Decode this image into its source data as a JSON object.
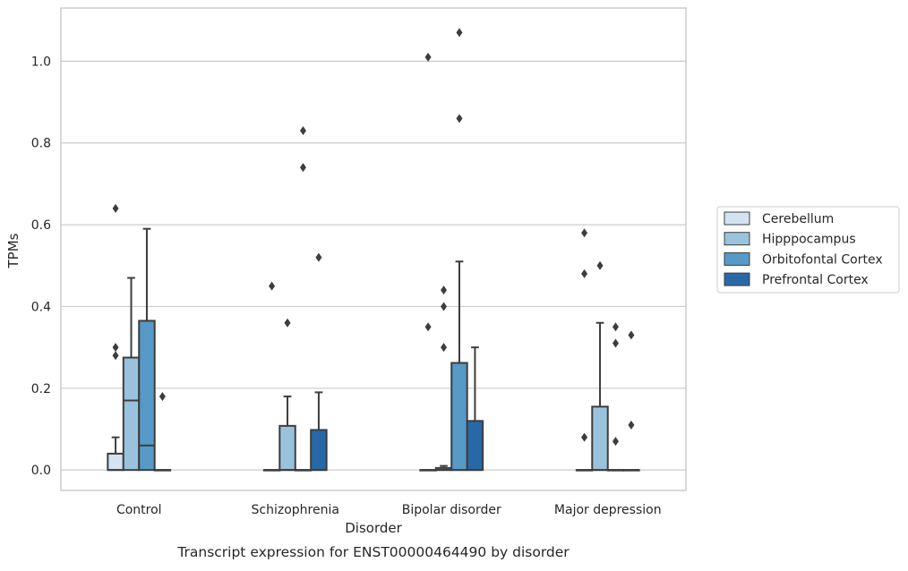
{
  "chart_data": {
    "type": "boxplot",
    "title": "Transcript expression for ENST00000464490 by disorder",
    "xlabel": "Disorder",
    "ylabel": "TPMs",
    "ylim": [
      -0.05,
      1.13
    ],
    "yticks": [
      0.0,
      0.2,
      0.4,
      0.6,
      0.8,
      1.0
    ],
    "ytick_labels": [
      "0.0",
      "0.2",
      "0.4",
      "0.6",
      "0.8",
      "1.0"
    ],
    "grid": "horizontal",
    "legend_position": "right",
    "categories": [
      "Control",
      "Schizophrenia",
      "Bipolar disorder",
      "Major depression"
    ],
    "series": [
      {
        "name": "Cerebellum",
        "color": "#d4e3f1",
        "boxes": [
          {
            "min": 0.0,
            "q1": 0.0,
            "median": 0.0,
            "q3": 0.04,
            "max": 0.08,
            "outliers": [
              0.64,
              0.3,
              0.28
            ]
          },
          {
            "min": 0.0,
            "q1": 0.0,
            "median": 0.0,
            "q3": 0.0,
            "max": 0.0,
            "outliers": [
              0.45
            ]
          },
          {
            "min": 0.0,
            "q1": 0.0,
            "median": 0.0,
            "q3": 0.0,
            "max": 0.0,
            "outliers": [
              1.01,
              0.35
            ]
          },
          {
            "min": 0.0,
            "q1": 0.0,
            "median": 0.0,
            "q3": 0.0,
            "max": 0.0,
            "outliers": [
              0.58,
              0.48,
              0.08
            ]
          }
        ]
      },
      {
        "name": "Hipppocampus",
        "color": "#9ac2dc",
        "boxes": [
          {
            "min": 0.0,
            "q1": 0.0,
            "median": 0.17,
            "q3": 0.275,
            "max": 0.47,
            "outliers": []
          },
          {
            "min": 0.0,
            "q1": 0.0,
            "median": 0.0,
            "q3": 0.108,
            "max": 0.18,
            "outliers": [
              0.36
            ]
          },
          {
            "min": 0.0,
            "q1": 0.0,
            "median": 0.0,
            "q3": 0.005,
            "max": 0.01,
            "outliers": [
              0.44,
              0.4,
              0.3
            ]
          },
          {
            "min": 0.0,
            "q1": 0.0,
            "median": 0.0,
            "q3": 0.155,
            "max": 0.36,
            "outliers": [
              0.5
            ]
          }
        ]
      },
      {
        "name": "Orbitofontal Cortex",
        "color": "#5799c7",
        "boxes": [
          {
            "min": 0.0,
            "q1": 0.0,
            "median": 0.06,
            "q3": 0.365,
            "max": 0.59,
            "outliers": []
          },
          {
            "min": 0.0,
            "q1": 0.0,
            "median": 0.0,
            "q3": 0.0,
            "max": 0.0,
            "outliers": [
              0.83,
              0.74
            ]
          },
          {
            "min": 0.0,
            "q1": 0.0,
            "median": 0.0,
            "q3": 0.262,
            "max": 0.51,
            "outliers": [
              1.07,
              0.86
            ]
          },
          {
            "min": 0.0,
            "q1": 0.0,
            "median": 0.0,
            "q3": 0.0,
            "max": 0.0,
            "outliers": [
              0.35,
              0.31,
              0.07
            ]
          }
        ]
      },
      {
        "name": "Prefrontal Cortex",
        "color": "#2868a6",
        "boxes": [
          {
            "min": 0.0,
            "q1": 0.0,
            "median": 0.0,
            "q3": 0.0,
            "max": 0.0,
            "outliers": [
              0.18
            ]
          },
          {
            "min": 0.0,
            "q1": 0.0,
            "median": 0.0,
            "q3": 0.098,
            "max": 0.19,
            "outliers": [
              0.52
            ]
          },
          {
            "min": 0.0,
            "q1": 0.0,
            "median": 0.0,
            "q3": 0.12,
            "max": 0.3,
            "outliers": []
          },
          {
            "min": 0.0,
            "q1": 0.0,
            "median": 0.0,
            "q3": 0.0,
            "max": 0.0,
            "outliers": [
              0.33,
              0.11
            ]
          }
        ]
      }
    ]
  }
}
